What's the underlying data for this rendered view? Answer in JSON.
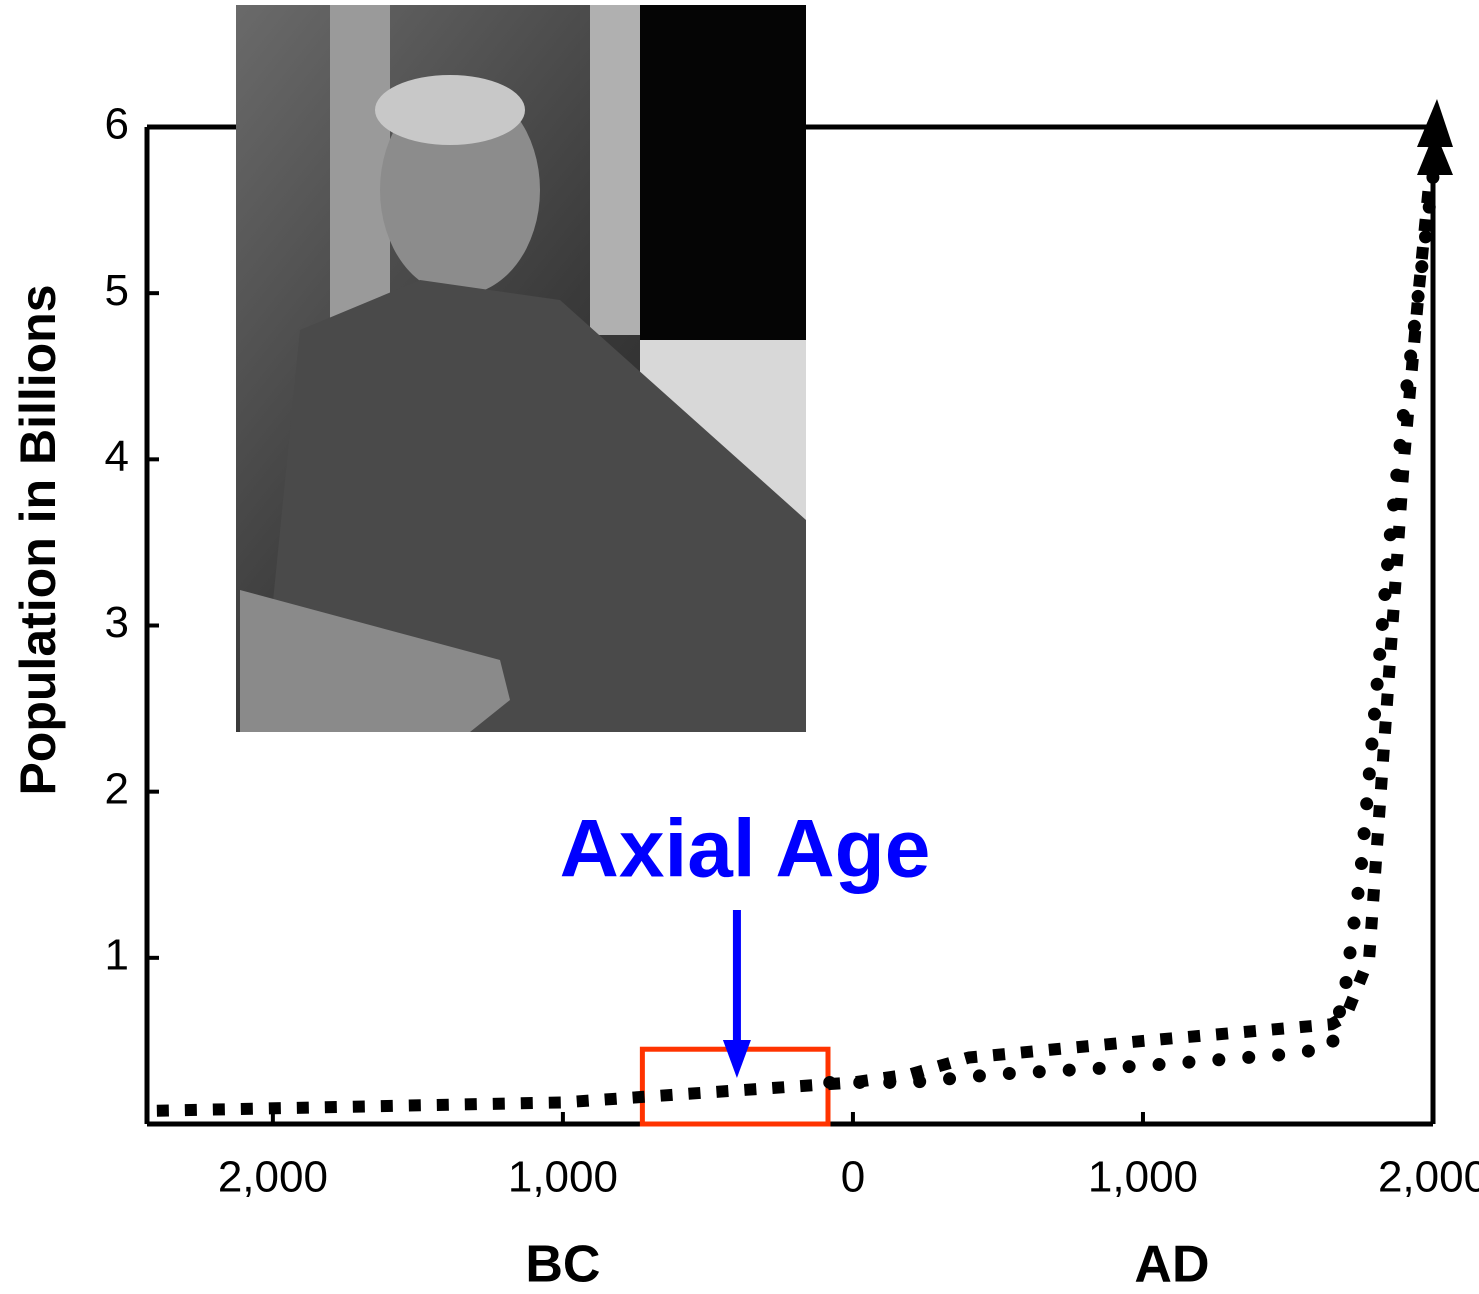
{
  "chart_data": {
    "type": "line",
    "y_label": "Population in Billions",
    "x_group_labels": [
      {
        "text": "BC",
        "value": -1000
      },
      {
        "text": "AD",
        "value": 1100
      }
    ],
    "annotation": {
      "text": "Axial Age",
      "color": "#0000ff",
      "x": -400,
      "box": [
        -726,
        -86
      ],
      "box_top": 0.45,
      "box_color": "#ff3300"
    },
    "xlim": [
      -2434,
      2000
    ],
    "ylim": [
      0,
      6
    ],
    "xticks": [
      {
        "value": -2000,
        "label": "2,000"
      },
      {
        "value": -1000,
        "label": "1,000"
      },
      0,
      {
        "value": 1000,
        "label": "1,000"
      },
      {
        "value": 2000,
        "label": "2,000"
      }
    ],
    "yticks": [
      1,
      2,
      3,
      4,
      5,
      6
    ],
    "series": [
      {
        "color": "#000000",
        "marker": "square",
        "x": [
          -2400,
          -1000,
          -500,
          0,
          200,
          400,
          1000,
          1650,
          1700,
          1780,
          1820,
          1860,
          1900,
          1950,
          2000
        ],
        "values": [
          0.08,
          0.13,
          0.19,
          0.25,
          0.3,
          0.4,
          0.5,
          0.6,
          0.65,
          1.0,
          2.0,
          3.0,
          4.0,
          5.0,
          5.9
        ]
      },
      {
        "color": "#000000",
        "marker": "circle",
        "x": [
          -80,
          200,
          500,
          1000,
          1500,
          1650,
          1700,
          1750,
          1800,
          1850,
          1900,
          1950,
          2000
        ],
        "values": [
          0.25,
          0.25,
          0.3,
          0.35,
          0.42,
          0.46,
          0.85,
          1.5,
          2.5,
          3.5,
          4.3,
          5.0,
          5.7
        ]
      }
    ]
  }
}
